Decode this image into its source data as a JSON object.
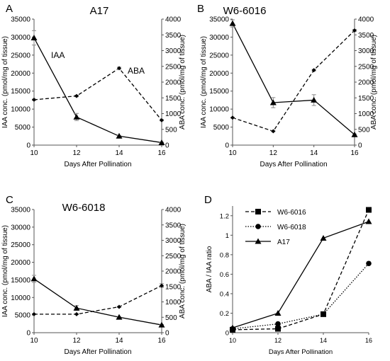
{
  "chart_data": [
    {
      "panel": "A",
      "title": "A17",
      "type": "line",
      "xlabel": "Days After Pollination",
      "ylabel_left": "IAA conc. (pmol/mg of tissue)",
      "ylabel_right": "ABA conc. (pmol/mg of tissue)",
      "x": [
        10,
        12,
        14,
        16
      ],
      "xlim": [
        10,
        16
      ],
      "ylim_left": [
        0,
        35000
      ],
      "ylim_right": [
        0,
        4000
      ],
      "yticks_left": [
        "0",
        "5000",
        "10000",
        "15000",
        "20000",
        "25000",
        "30000",
        "35000"
      ],
      "yticks_right": [
        "0",
        "500",
        "1000",
        "1500",
        "2000",
        "2500",
        "3000",
        "3500",
        "4000"
      ],
      "xticks": [
        "10",
        "12",
        "14",
        "16"
      ],
      "annotations": [
        "IAA",
        "ABA"
      ],
      "series": [
        {
          "name": "IAA",
          "axis": "left",
          "style": "solid",
          "marker": "triangle",
          "values": [
            29800,
            7800,
            2500,
            700
          ],
          "errors": [
            2000,
            1000,
            150,
            80
          ]
        },
        {
          "name": "ABA",
          "axis": "right",
          "style": "dashed",
          "marker": "diamond",
          "values": [
            1440,
            1560,
            2440,
            790
          ],
          "errors": [
            20,
            25,
            35,
            20
          ]
        }
      ]
    },
    {
      "panel": "B",
      "title": "W6-6016",
      "type": "line",
      "xlabel": "Days After Pollination",
      "ylabel_left": "IAA conc. (pmol/mg of tissue)",
      "ylabel_right": "ABA conc. (pmol/mg of tissue)",
      "x": [
        10,
        12,
        14,
        16
      ],
      "xlim": [
        10,
        16
      ],
      "ylim_left": [
        0,
        35000
      ],
      "ylim_right": [
        0,
        4000
      ],
      "yticks_left": [
        "0",
        "5000",
        "10000",
        "15000",
        "20000",
        "25000",
        "30000",
        "35000"
      ],
      "yticks_right": [
        "0",
        "500",
        "1000",
        "1500",
        "2000",
        "2500",
        "3000",
        "3500",
        "4000"
      ],
      "xticks": [
        "10",
        "12",
        "14",
        "16"
      ],
      "series": [
        {
          "name": "IAA",
          "axis": "left",
          "style": "solid",
          "marker": "triangle",
          "values": [
            33800,
            11800,
            12500,
            2900
          ],
          "errors": [
            1000,
            1400,
            1500,
            200
          ]
        },
        {
          "name": "ABA",
          "axis": "right",
          "style": "dashed",
          "marker": "diamond",
          "values": [
            870,
            440,
            2380,
            3640
          ],
          "errors": [
            15,
            15,
            25,
            30
          ]
        }
      ]
    },
    {
      "panel": "C",
      "title": "W6-6018",
      "type": "line",
      "xlabel": "Days After Pollination",
      "ylabel_left": "IAA conc. (pmol/mg of tissue)",
      "ylabel_right": "ABA conc. (pmol/mg of tissue)",
      "x": [
        10,
        12,
        14,
        16
      ],
      "xlim": [
        10,
        16
      ],
      "ylim_left": [
        0,
        35000
      ],
      "ylim_right": [
        0,
        4000
      ],
      "yticks_left": [
        "0",
        "5000",
        "10000",
        "15000",
        "20000",
        "25000",
        "30000",
        "35000"
      ],
      "yticks_right": [
        "0",
        "500",
        "1000",
        "1500",
        "2000",
        "2500",
        "3000",
        "3500",
        "4000"
      ],
      "xticks": [
        "10",
        "12",
        "14",
        "16"
      ],
      "series": [
        {
          "name": "IAA",
          "axis": "left",
          "style": "solid",
          "marker": "triangle",
          "values": [
            15300,
            7000,
            4400,
            2200
          ],
          "errors": [
            1000,
            700,
            200,
            100
          ]
        },
        {
          "name": "ABA",
          "axis": "right",
          "style": "dashed",
          "marker": "diamond",
          "values": [
            600,
            600,
            840,
            1530
          ],
          "errors": [
            15,
            15,
            20,
            60
          ]
        }
      ]
    },
    {
      "panel": "D",
      "type": "line",
      "xlabel": "Days After Pollination",
      "ylabel": "ABA / IAA ratio",
      "x": [
        10,
        12,
        14,
        16
      ],
      "xlim": [
        10,
        16
      ],
      "ylim": [
        0,
        1.3
      ],
      "yticks": [
        "0",
        "0.2",
        "0.4",
        "0.6",
        "0.8",
        "1",
        "1.2"
      ],
      "xticks": [
        "10",
        "12",
        "14",
        "16"
      ],
      "legend_position": "top-left",
      "series": [
        {
          "name": "W6-6016",
          "style": "dashed",
          "marker": "square",
          "values": [
            0.03,
            0.04,
            0.19,
            1.26
          ]
        },
        {
          "name": "W6-6018",
          "style": "dotted",
          "marker": "circle",
          "values": [
            0.04,
            0.09,
            0.19,
            0.71
          ]
        },
        {
          "name": "A17",
          "style": "solid",
          "marker": "triangle",
          "values": [
            0.05,
            0.2,
            0.97,
            1.14
          ]
        }
      ]
    }
  ]
}
